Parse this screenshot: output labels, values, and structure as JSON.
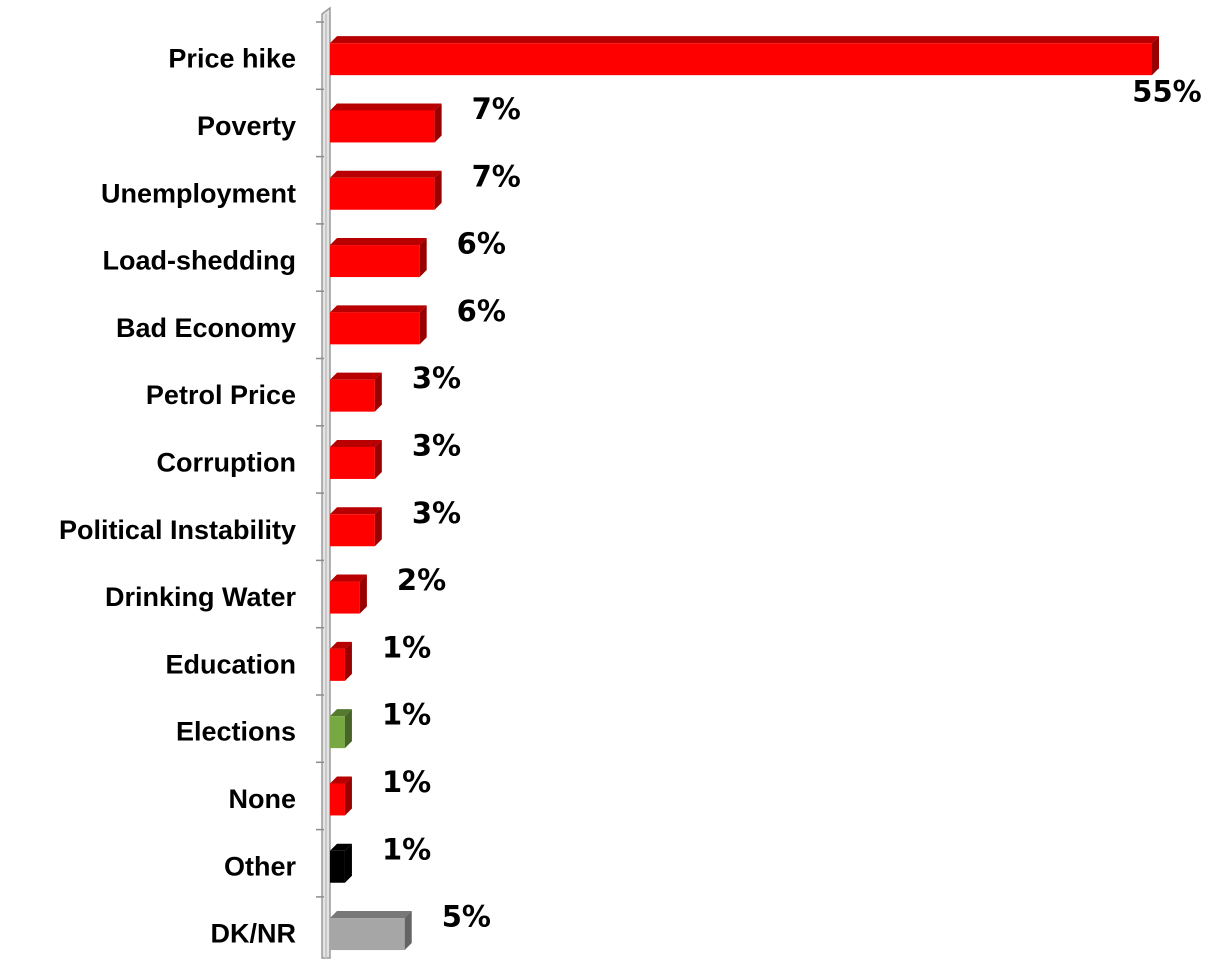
{
  "chart_data": {
    "type": "bar",
    "orientation": "horizontal",
    "categories": [
      "Price hike",
      "Poverty",
      "Unemployment",
      "Load-shedding",
      "Bad Economy",
      "Petrol Price",
      "Corruption",
      "Political Instability",
      "Drinking Water",
      "Education",
      "Elections",
      "None",
      "Other",
      "DK/NR"
    ],
    "values": [
      55,
      7,
      7,
      6,
      6,
      3,
      3,
      3,
      2,
      1,
      1,
      1,
      1,
      5
    ],
    "value_labels": [
      "55%",
      "7%",
      "7%",
      "6%",
      "6%",
      "3%",
      "3%",
      "3%",
      "2%",
      "1%",
      "1%",
      "1%",
      "1%",
      "5%"
    ],
    "bar_colors": [
      "#ff0000",
      "#ff0000",
      "#ff0000",
      "#ff0000",
      "#ff0000",
      "#ff0000",
      "#ff0000",
      "#ff0000",
      "#ff0000",
      "#ff0000",
      "#77a842",
      "#ff0000",
      "#000000",
      "#a6a6a6"
    ],
    "xlim": [
      0,
      55
    ],
    "grid": false,
    "legend": "none",
    "style": "3d-bars"
  }
}
